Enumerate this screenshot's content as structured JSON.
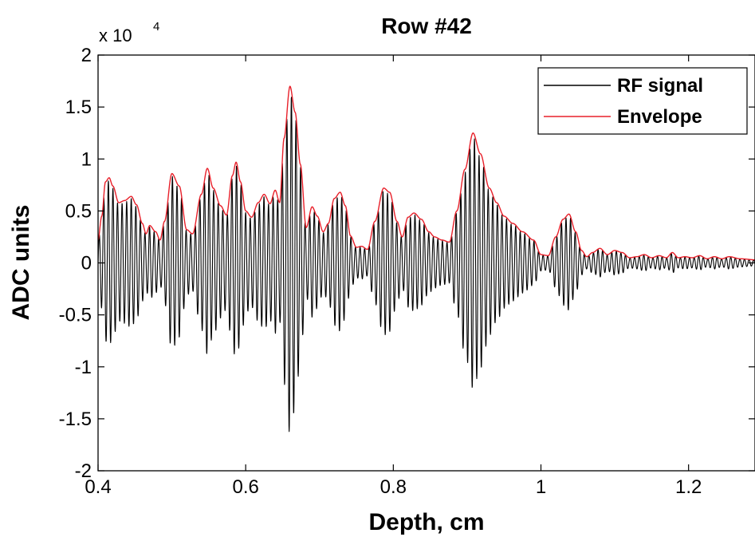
{
  "chart_data": {
    "type": "line",
    "title": "Row #42",
    "xlabel": "Depth, cm",
    "ylabel": "ADC units",
    "y_exponent_base": "x 10",
    "y_exponent_power": "4",
    "xlim": [
      0.4,
      1.29
    ],
    "ylim": [
      -2,
      2
    ],
    "x_ticks": [
      0.4,
      0.6,
      0.8,
      1.0,
      1.2
    ],
    "x_tick_labels": [
      "0.4",
      "0.6",
      "0.8",
      "1",
      "1.2"
    ],
    "y_ticks": [
      -2,
      -1.5,
      -1,
      -0.5,
      0,
      0.5,
      1,
      1.5,
      2
    ],
    "y_tick_labels": [
      "-2",
      "-1.5",
      "-1",
      "-0.5",
      "0",
      "0.5",
      "1",
      "1.5",
      "2"
    ],
    "grid": false,
    "legend_position": "top-right",
    "carrier_period_cm": 0.0062,
    "series": [
      {
        "name": "RF signal",
        "color": "#000000",
        "kind": "rf",
        "envelope_points": [
          [
            0.4,
            0.22
          ],
          [
            0.405,
            0.45
          ],
          [
            0.41,
            0.78
          ],
          [
            0.415,
            0.82
          ],
          [
            0.42,
            0.74
          ],
          [
            0.428,
            0.58
          ],
          [
            0.436,
            0.6
          ],
          [
            0.445,
            0.64
          ],
          [
            0.452,
            0.56
          ],
          [
            0.46,
            0.38
          ],
          [
            0.465,
            0.28
          ],
          [
            0.47,
            0.36
          ],
          [
            0.478,
            0.3
          ],
          [
            0.484,
            0.22
          ],
          [
            0.49,
            0.4
          ],
          [
            0.5,
            0.86
          ],
          [
            0.51,
            0.74
          ],
          [
            0.52,
            0.32
          ],
          [
            0.528,
            0.28
          ],
          [
            0.54,
            0.66
          ],
          [
            0.548,
            0.91
          ],
          [
            0.556,
            0.72
          ],
          [
            0.566,
            0.55
          ],
          [
            0.574,
            0.46
          ],
          [
            0.582,
            0.84
          ],
          [
            0.587,
            0.97
          ],
          [
            0.593,
            0.78
          ],
          [
            0.6,
            0.5
          ],
          [
            0.608,
            0.44
          ],
          [
            0.617,
            0.58
          ],
          [
            0.625,
            0.66
          ],
          [
            0.633,
            0.57
          ],
          [
            0.64,
            0.7
          ],
          [
            0.646,
            0.58
          ],
          [
            0.652,
            1.2
          ],
          [
            0.66,
            1.7
          ],
          [
            0.667,
            1.45
          ],
          [
            0.674,
            0.95
          ],
          [
            0.682,
            0.34
          ],
          [
            0.69,
            0.54
          ],
          [
            0.697,
            0.45
          ],
          [
            0.705,
            0.3
          ],
          [
            0.712,
            0.38
          ],
          [
            0.72,
            0.62
          ],
          [
            0.728,
            0.68
          ],
          [
            0.735,
            0.55
          ],
          [
            0.742,
            0.26
          ],
          [
            0.75,
            0.15
          ],
          [
            0.757,
            0.16
          ],
          [
            0.765,
            0.13
          ],
          [
            0.775,
            0.4
          ],
          [
            0.787,
            0.72
          ],
          [
            0.795,
            0.68
          ],
          [
            0.805,
            0.4
          ],
          [
            0.812,
            0.25
          ],
          [
            0.82,
            0.44
          ],
          [
            0.828,
            0.48
          ],
          [
            0.838,
            0.42
          ],
          [
            0.848,
            0.3
          ],
          [
            0.856,
            0.25
          ],
          [
            0.866,
            0.22
          ],
          [
            0.876,
            0.2
          ],
          [
            0.886,
            0.5
          ],
          [
            0.897,
            0.9
          ],
          [
            0.908,
            1.25
          ],
          [
            0.918,
            1.05
          ],
          [
            0.93,
            0.72
          ],
          [
            0.94,
            0.58
          ],
          [
            0.95,
            0.45
          ],
          [
            0.962,
            0.38
          ],
          [
            0.975,
            0.3
          ],
          [
            0.99,
            0.22
          ],
          [
            1.0,
            0.08
          ],
          [
            1.01,
            0.07
          ],
          [
            1.02,
            0.25
          ],
          [
            1.03,
            0.42
          ],
          [
            1.038,
            0.47
          ],
          [
            1.047,
            0.3
          ],
          [
            1.055,
            0.12
          ],
          [
            1.062,
            0.06
          ],
          [
            1.07,
            0.1
          ],
          [
            1.08,
            0.14
          ],
          [
            1.09,
            0.08
          ],
          [
            1.1,
            0.12
          ],
          [
            1.11,
            0.1
          ],
          [
            1.12,
            0.05
          ],
          [
            1.13,
            0.06
          ],
          [
            1.14,
            0.08
          ],
          [
            1.15,
            0.05
          ],
          [
            1.16,
            0.07
          ],
          [
            1.17,
            0.05
          ],
          [
            1.178,
            0.1
          ],
          [
            1.186,
            0.05
          ],
          [
            1.195,
            0.06
          ],
          [
            1.205,
            0.05
          ],
          [
            1.215,
            0.07
          ],
          [
            1.225,
            0.04
          ],
          [
            1.235,
            0.06
          ],
          [
            1.245,
            0.04
          ],
          [
            1.255,
            0.06
          ],
          [
            1.27,
            0.04
          ],
          [
            1.29,
            0.03
          ]
        ]
      },
      {
        "name": "Envelope",
        "color": "#e8202a",
        "kind": "envelope",
        "points": [
          [
            0.4,
            0.22
          ],
          [
            0.405,
            0.45
          ],
          [
            0.41,
            0.78
          ],
          [
            0.415,
            0.82
          ],
          [
            0.42,
            0.74
          ],
          [
            0.428,
            0.58
          ],
          [
            0.436,
            0.6
          ],
          [
            0.445,
            0.64
          ],
          [
            0.452,
            0.56
          ],
          [
            0.46,
            0.38
          ],
          [
            0.465,
            0.28
          ],
          [
            0.47,
            0.36
          ],
          [
            0.478,
            0.3
          ],
          [
            0.484,
            0.22
          ],
          [
            0.49,
            0.4
          ],
          [
            0.5,
            0.86
          ],
          [
            0.51,
            0.74
          ],
          [
            0.52,
            0.32
          ],
          [
            0.528,
            0.28
          ],
          [
            0.54,
            0.66
          ],
          [
            0.548,
            0.91
          ],
          [
            0.556,
            0.72
          ],
          [
            0.566,
            0.55
          ],
          [
            0.574,
            0.46
          ],
          [
            0.582,
            0.84
          ],
          [
            0.587,
            0.97
          ],
          [
            0.593,
            0.78
          ],
          [
            0.6,
            0.5
          ],
          [
            0.608,
            0.44
          ],
          [
            0.617,
            0.58
          ],
          [
            0.625,
            0.66
          ],
          [
            0.633,
            0.57
          ],
          [
            0.64,
            0.7
          ],
          [
            0.646,
            0.58
          ],
          [
            0.652,
            1.2
          ],
          [
            0.66,
            1.7
          ],
          [
            0.667,
            1.45
          ],
          [
            0.674,
            0.95
          ],
          [
            0.682,
            0.34
          ],
          [
            0.69,
            0.54
          ],
          [
            0.697,
            0.45
          ],
          [
            0.705,
            0.3
          ],
          [
            0.712,
            0.38
          ],
          [
            0.72,
            0.62
          ],
          [
            0.728,
            0.68
          ],
          [
            0.735,
            0.55
          ],
          [
            0.742,
            0.26
          ],
          [
            0.75,
            0.15
          ],
          [
            0.757,
            0.16
          ],
          [
            0.765,
            0.13
          ],
          [
            0.775,
            0.4
          ],
          [
            0.787,
            0.72
          ],
          [
            0.795,
            0.68
          ],
          [
            0.805,
            0.4
          ],
          [
            0.812,
            0.25
          ],
          [
            0.82,
            0.44
          ],
          [
            0.828,
            0.48
          ],
          [
            0.838,
            0.42
          ],
          [
            0.848,
            0.3
          ],
          [
            0.856,
            0.25
          ],
          [
            0.866,
            0.22
          ],
          [
            0.876,
            0.2
          ],
          [
            0.886,
            0.5
          ],
          [
            0.897,
            0.9
          ],
          [
            0.908,
            1.25
          ],
          [
            0.918,
            1.05
          ],
          [
            0.93,
            0.72
          ],
          [
            0.94,
            0.58
          ],
          [
            0.95,
            0.45
          ],
          [
            0.962,
            0.38
          ],
          [
            0.975,
            0.3
          ],
          [
            0.99,
            0.22
          ],
          [
            1.0,
            0.08
          ],
          [
            1.01,
            0.07
          ],
          [
            1.02,
            0.25
          ],
          [
            1.03,
            0.42
          ],
          [
            1.038,
            0.47
          ],
          [
            1.047,
            0.3
          ],
          [
            1.055,
            0.12
          ],
          [
            1.062,
            0.06
          ],
          [
            1.07,
            0.1
          ],
          [
            1.08,
            0.14
          ],
          [
            1.09,
            0.08
          ],
          [
            1.1,
            0.12
          ],
          [
            1.11,
            0.1
          ],
          [
            1.12,
            0.05
          ],
          [
            1.13,
            0.06
          ],
          [
            1.14,
            0.08
          ],
          [
            1.15,
            0.05
          ],
          [
            1.16,
            0.07
          ],
          [
            1.17,
            0.05
          ],
          [
            1.178,
            0.1
          ],
          [
            1.186,
            0.05
          ],
          [
            1.195,
            0.06
          ],
          [
            1.205,
            0.05
          ],
          [
            1.215,
            0.07
          ],
          [
            1.225,
            0.04
          ],
          [
            1.235,
            0.06
          ],
          [
            1.245,
            0.04
          ],
          [
            1.255,
            0.06
          ],
          [
            1.27,
            0.04
          ],
          [
            1.29,
            0.03
          ]
        ]
      }
    ]
  }
}
